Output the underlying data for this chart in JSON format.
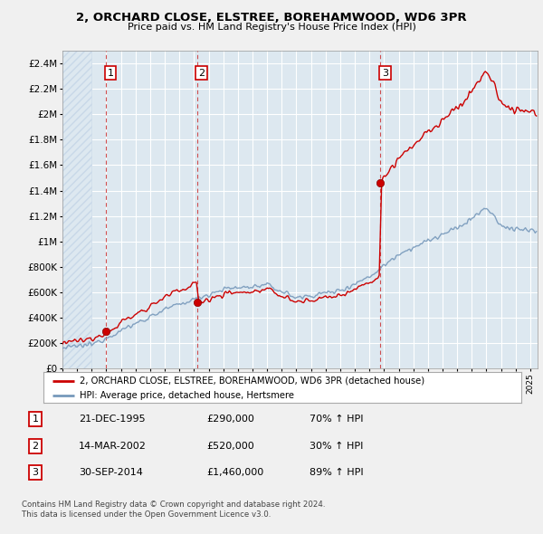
{
  "title": "2, ORCHARD CLOSE, ELSTREE, BOREHAMWOOD, WD6 3PR",
  "subtitle": "Price paid vs. HM Land Registry's House Price Index (HPI)",
  "sale_dates_float": [
    1995.97,
    2002.2,
    2014.75
  ],
  "sale_prices": [
    290000,
    520000,
    1460000
  ],
  "sale_labels": [
    "1",
    "2",
    "3"
  ],
  "legend_line1": "2, ORCHARD CLOSE, ELSTREE, BOREHAMWOOD, WD6 3PR (detached house)",
  "legend_line2": "HPI: Average price, detached house, Hertsmere",
  "table_rows": [
    [
      "1",
      "21-DEC-1995",
      "£290,000",
      "70% ↑ HPI"
    ],
    [
      "2",
      "14-MAR-2002",
      "£520,000",
      "30% ↑ HPI"
    ],
    [
      "3",
      "30-SEP-2014",
      "£1,460,000",
      "89% ↑ HPI"
    ]
  ],
  "footer": "Contains HM Land Registry data © Crown copyright and database right 2024.\nThis data is licensed under the Open Government Licence v3.0.",
  "red_color": "#cc0000",
  "blue_color": "#7799bb",
  "ylim": [
    0,
    2500000
  ],
  "yticks": [
    0,
    200000,
    400000,
    600000,
    800000,
    1000000,
    1200000,
    1400000,
    1600000,
    1800000,
    2000000,
    2200000,
    2400000
  ],
  "ytick_labels": [
    "£0",
    "£200K",
    "£400K",
    "£600K",
    "£800K",
    "£1M",
    "£1.2M",
    "£1.4M",
    "£1.6M",
    "£1.8M",
    "£2M",
    "£2.2M",
    "£2.4M"
  ],
  "xlim": [
    1993.0,
    2025.5
  ],
  "background_color": "#f0f0f0",
  "plot_bg_color": "#dde8f0",
  "hatch_color": "#c8d8e8"
}
